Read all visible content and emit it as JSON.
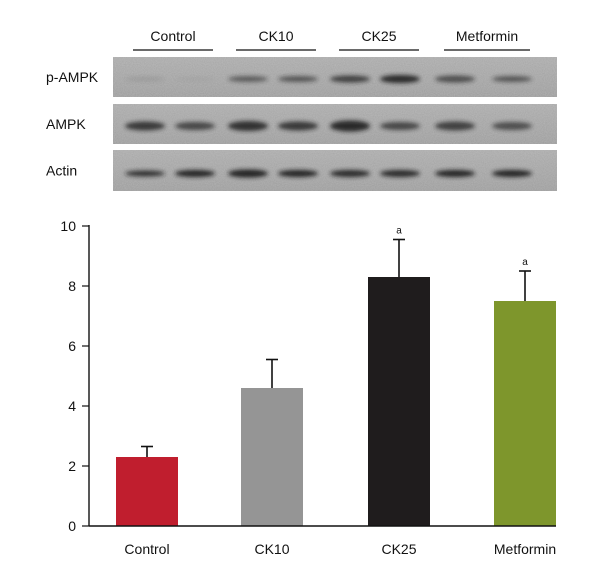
{
  "blot": {
    "lane_groups": [
      "Control",
      "CK10",
      "CK25",
      "Metformin"
    ],
    "rows": [
      {
        "label": "p-AMPK"
      },
      {
        "label": "AMPK"
      },
      {
        "label": "Actin"
      }
    ]
  },
  "chart_data": {
    "type": "bar",
    "categories": [
      "Control",
      "CK10",
      "CK25",
      "Metformin"
    ],
    "values": [
      2.3,
      4.6,
      8.3,
      7.5
    ],
    "errors": [
      0.35,
      0.95,
      1.25,
      1.0
    ],
    "annotations": [
      "",
      "",
      "a",
      "a"
    ],
    "colors": [
      "#c01e2e",
      "#959595",
      "#1f1c1d",
      "#7e962c"
    ],
    "ylim": [
      0,
      10
    ],
    "yticks": [
      0,
      2,
      4,
      6,
      8,
      10
    ],
    "title": "",
    "xlabel": "",
    "ylabel": "",
    "grid": false
  }
}
